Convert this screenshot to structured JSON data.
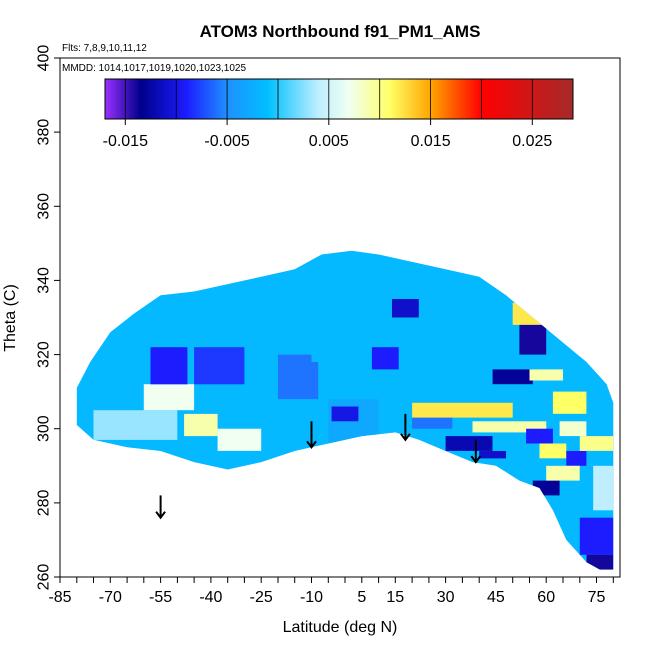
{
  "chart_data": {
    "type": "heatmap",
    "title": "ATOM3 Northbound f91_PM1_AMS",
    "flights_note": "Flts: 7,8,9,10,11,12",
    "dates_note": "MMDD: 1014,1017,1019,1020,1023,1025",
    "xlabel": "Latitude (deg N)",
    "ylabel": "Theta (C)",
    "xlim": [
      -85,
      82
    ],
    "ylim": [
      260,
      400
    ],
    "x_ticks": [
      -85,
      -70,
      -55,
      -40,
      -25,
      -10,
      5,
      15,
      30,
      45,
      60,
      75
    ],
    "y_ticks": [
      260,
      280,
      300,
      320,
      340,
      360,
      380,
      400
    ],
    "colorbar": {
      "range": [
        -0.017,
        0.029
      ],
      "ticks": [
        -0.015,
        -0.005,
        0.005,
        0.015,
        0.025
      ],
      "tick_labels": [
        "-0.015",
        "-0.005",
        "0.005",
        "0.015",
        "0.025"
      ],
      "stops": [
        {
          "value": -0.017,
          "color": "#9b30ff"
        },
        {
          "value": -0.0135,
          "color": "#00008b"
        },
        {
          "value": -0.009,
          "color": "#1c1cff"
        },
        {
          "value": -0.005,
          "color": "#1e90ff"
        },
        {
          "value": -0.001,
          "color": "#00bfff"
        },
        {
          "value": 0.004,
          "color": "#bfefff"
        },
        {
          "value": 0.007,
          "color": "#f0fff0"
        },
        {
          "value": 0.011,
          "color": "#ffff66"
        },
        {
          "value": 0.015,
          "color": "#ffa500"
        },
        {
          "value": 0.02,
          "color": "#ff0000"
        },
        {
          "value": 0.029,
          "color": "#a52a2a"
        }
      ]
    },
    "coverage_outline": [
      [
        -80,
        311
      ],
      [
        -76,
        318
      ],
      [
        -70,
        326
      ],
      [
        -63,
        331
      ],
      [
        -55,
        336
      ],
      [
        -45,
        337
      ],
      [
        -35,
        339
      ],
      [
        -25,
        341
      ],
      [
        -15,
        343
      ],
      [
        -7,
        347
      ],
      [
        2,
        348
      ],
      [
        10,
        347
      ],
      [
        20,
        345
      ],
      [
        30,
        343
      ],
      [
        40,
        341
      ],
      [
        48,
        336
      ],
      [
        56,
        330
      ],
      [
        64,
        324
      ],
      [
        72,
        318
      ],
      [
        78,
        312
      ],
      [
        80,
        307
      ],
      [
        80,
        262
      ],
      [
        76,
        262
      ],
      [
        72,
        264
      ],
      [
        66,
        270
      ],
      [
        62,
        278
      ],
      [
        58,
        284
      ],
      [
        52,
        286
      ],
      [
        45,
        290
      ],
      [
        38,
        291
      ],
      [
        30,
        294
      ],
      [
        22,
        297
      ],
      [
        15,
        299
      ],
      [
        5,
        298
      ],
      [
        -5,
        296
      ],
      [
        -15,
        294
      ],
      [
        -25,
        291
      ],
      [
        -35,
        289
      ],
      [
        -45,
        291
      ],
      [
        -55,
        294
      ],
      [
        -65,
        295
      ],
      [
        -75,
        297
      ],
      [
        -80,
        301
      ]
    ],
    "regions": [
      {
        "x": [
          -75,
          -50
        ],
        "y": [
          297,
          305
        ],
        "value": 0.003
      },
      {
        "x": [
          -48,
          -38
        ],
        "y": [
          298,
          304
        ],
        "value": 0.009
      },
      {
        "x": [
          -38,
          -25
        ],
        "y": [
          294,
          300
        ],
        "value": 0.007
      },
      {
        "x": [
          -60,
          -45
        ],
        "y": [
          305,
          312
        ],
        "value": 0.007
      },
      {
        "x": [
          -58,
          -47
        ],
        "y": [
          312,
          322
        ],
        "value": -0.009
      },
      {
        "x": [
          -45,
          -30
        ],
        "y": [
          312,
          322
        ],
        "value": -0.008
      },
      {
        "x": [
          -20,
          -8
        ],
        "y": [
          308,
          318
        ],
        "value": -0.006
      },
      {
        "x": [
          -5,
          10
        ],
        "y": [
          296,
          308
        ],
        "value": -0.003
      },
      {
        "x": [
          -4,
          4
        ],
        "y": [
          302,
          306
        ],
        "value": -0.01
      },
      {
        "x": [
          8,
          16
        ],
        "y": [
          316,
          322
        ],
        "value": -0.009
      },
      {
        "x": [
          14,
          22
        ],
        "y": [
          330,
          335
        ],
        "value": -0.011
      },
      {
        "x": [
          -20,
          -10
        ],
        "y": [
          312,
          320
        ],
        "value": -0.006
      },
      {
        "x": [
          20,
          32
        ],
        "y": [
          300,
          306
        ],
        "value": -0.006
      },
      {
        "x": [
          20,
          50
        ],
        "y": [
          303,
          307
        ],
        "value": 0.012
      },
      {
        "x": [
          38,
          60
        ],
        "y": [
          299,
          302
        ],
        "value": 0.009
      },
      {
        "x": [
          30,
          44
        ],
        "y": [
          294,
          298
        ],
        "value": -0.012
      },
      {
        "x": [
          40,
          48
        ],
        "y": [
          292,
          294
        ],
        "value": -0.011
      },
      {
        "x": [
          50,
          60
        ],
        "y": [
          328,
          334
        ],
        "value": 0.012
      },
      {
        "x": [
          52,
          60
        ],
        "y": [
          320,
          328
        ],
        "value": -0.014
      },
      {
        "x": [
          44,
          56
        ],
        "y": [
          312,
          316
        ],
        "value": -0.013
      },
      {
        "x": [
          55,
          65
        ],
        "y": [
          313,
          316
        ],
        "value": 0.009
      },
      {
        "x": [
          62,
          72
        ],
        "y": [
          304,
          310
        ],
        "value": 0.011
      },
      {
        "x": [
          64,
          72
        ],
        "y": [
          298,
          302
        ],
        "value": 0.008
      },
      {
        "x": [
          54,
          62
        ],
        "y": [
          296,
          300
        ],
        "value": -0.009
      },
      {
        "x": [
          58,
          66
        ],
        "y": [
          292,
          296
        ],
        "value": 0.011
      },
      {
        "x": [
          66,
          72
        ],
        "y": [
          290,
          294
        ],
        "value": -0.009
      },
      {
        "x": [
          70,
          80
        ],
        "y": [
          294,
          298
        ],
        "value": 0.01
      },
      {
        "x": [
          56,
          64
        ],
        "y": [
          282,
          286
        ],
        "value": -0.013
      },
      {
        "x": [
          60,
          70
        ],
        "y": [
          286,
          290
        ],
        "value": 0.009
      },
      {
        "x": [
          70,
          80
        ],
        "y": [
          266,
          276
        ],
        "value": -0.009
      },
      {
        "x": [
          72,
          80
        ],
        "y": [
          262,
          266
        ],
        "value": -0.014
      },
      {
        "x": [
          74,
          80
        ],
        "y": [
          278,
          290
        ],
        "value": 0.004
      }
    ],
    "arrows": [
      {
        "x": -55,
        "y_top": 282,
        "y_bottom": 276
      },
      {
        "x": -10,
        "y_top": 302,
        "y_bottom": 295
      },
      {
        "x": 18,
        "y_top": 304,
        "y_bottom": 297
      },
      {
        "x": 39,
        "y_top": 297,
        "y_bottom": 291
      }
    ]
  }
}
